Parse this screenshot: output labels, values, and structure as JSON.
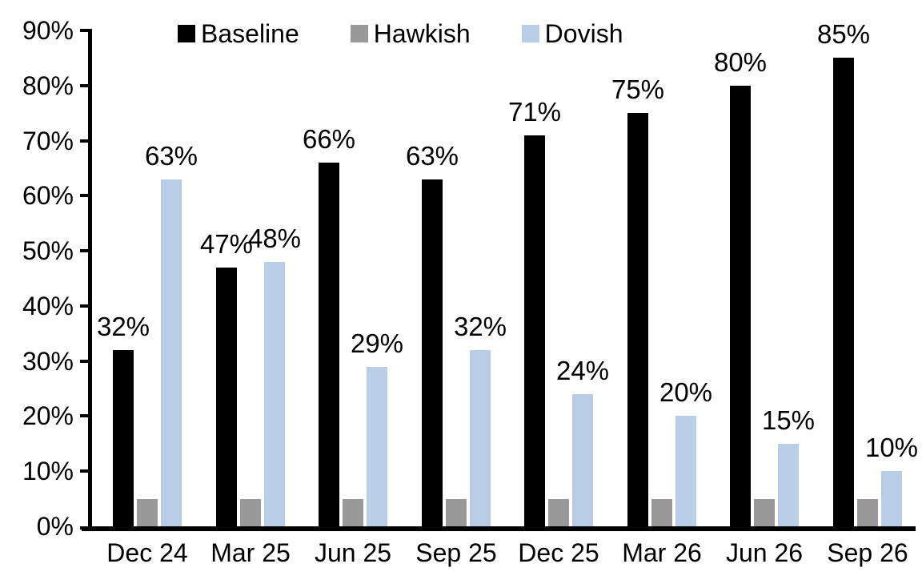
{
  "chart_data": {
    "type": "bar",
    "title": "",
    "xlabel": "",
    "ylabel": "",
    "categories": [
      "Dec 24",
      "Mar 25",
      "Jun 25",
      "Sep 25",
      "Dec 25",
      "Mar 26",
      "Jun 26",
      "Sep 26"
    ],
    "series": [
      {
        "name": "Baseline",
        "color": "#000000",
        "values": [
          32,
          47,
          66,
          63,
          71,
          75,
          80,
          85
        ],
        "labels": [
          "32%",
          "47%",
          "66%",
          "63%",
          "71%",
          "75%",
          "80%",
          "85%"
        ],
        "show_labels": true
      },
      {
        "name": "Hawkish",
        "color": "#999999",
        "values": [
          5,
          5,
          5,
          5,
          5,
          5,
          5,
          5
        ],
        "labels": [],
        "show_labels": false
      },
      {
        "name": "Dovish",
        "color": "#B9CDE5",
        "values": [
          63,
          48,
          29,
          32,
          24,
          20,
          15,
          10
        ],
        "labels": [
          "63%",
          "48%",
          "29%",
          "32%",
          "24%",
          "20%",
          "15%",
          "10%"
        ],
        "show_labels": true
      }
    ],
    "ylim": [
      0,
      90
    ],
    "ytick_step": 10,
    "ytick_labels": [
      "0%",
      "10%",
      "20%",
      "30%",
      "40%",
      "50%",
      "60%",
      "70%",
      "80%",
      "90%"
    ],
    "grid": false,
    "legend_position": "top",
    "background_color": "#FFFFFF",
    "axis_color": "#000000",
    "text_color": "#000000"
  }
}
